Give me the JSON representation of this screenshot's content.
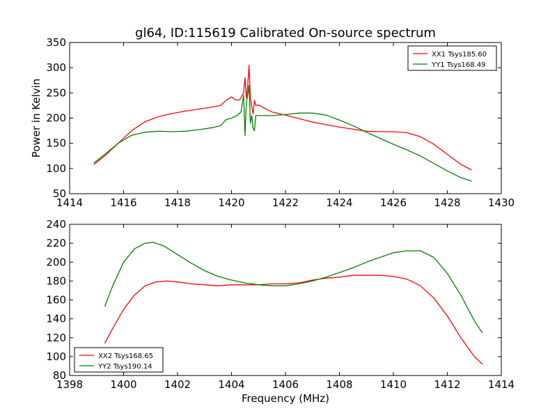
{
  "figure_title": "gl64, ID:115619 Calibrated On-source spectrum",
  "chart_data": [
    {
      "type": "line",
      "title": "gl64, ID:115619 Calibrated On-source spectrum",
      "xlabel": "",
      "ylabel": "Power in Kelvin",
      "xlim": [
        1414,
        1430
      ],
      "ylim": [
        50,
        350
      ],
      "xticks": [
        1414,
        1416,
        1418,
        1420,
        1422,
        1424,
        1426,
        1428,
        1430
      ],
      "yticks": [
        50,
        100,
        150,
        200,
        250,
        300,
        350
      ],
      "grid": false,
      "legend": "top-right",
      "series": [
        {
          "name": "XX1 Tsys185.60",
          "color": "#ff0000",
          "x": [
            1414.9,
            1415.3,
            1415.8,
            1416.3,
            1416.8,
            1417.3,
            1417.8,
            1418.3,
            1418.8,
            1419.3,
            1419.6,
            1419.8,
            1420.0,
            1420.15,
            1420.3,
            1420.45,
            1420.5,
            1420.55,
            1420.6,
            1420.65,
            1420.7,
            1420.75,
            1420.8,
            1420.85,
            1420.9,
            1421.0,
            1421.2,
            1421.5,
            1422.0,
            1422.5,
            1423.0,
            1423.5,
            1424.0,
            1424.5,
            1425.0,
            1425.5,
            1426.0,
            1426.5,
            1427.0,
            1427.5,
            1428.0,
            1428.5,
            1428.9
          ],
          "values": [
            108,
            125,
            150,
            175,
            193,
            203,
            209,
            214,
            218,
            222,
            225,
            235,
            242,
            236,
            236,
            250,
            280,
            240,
            262,
            305,
            240,
            222,
            208,
            235,
            225,
            226,
            220,
            212,
            206,
            199,
            192,
            187,
            182,
            178,
            174,
            173,
            173,
            171,
            163,
            148,
            128,
            108,
            97
          ]
        },
        {
          "name": "YY1 Tsys168.49",
          "color": "#008000",
          "x": [
            1414.9,
            1415.3,
            1415.8,
            1416.3,
            1416.8,
            1417.3,
            1417.8,
            1418.3,
            1418.8,
            1419.3,
            1419.6,
            1419.8,
            1420.0,
            1420.2,
            1420.35,
            1420.45,
            1420.5,
            1420.55,
            1420.6,
            1420.65,
            1420.7,
            1420.75,
            1420.8,
            1420.85,
            1420.9,
            1421.0,
            1421.5,
            1422.0,
            1422.5,
            1423.0,
            1423.5,
            1424.0,
            1424.5,
            1425.0,
            1425.5,
            1426.0,
            1426.5,
            1427.0,
            1427.5,
            1428.0,
            1428.5,
            1428.9
          ],
          "values": [
            111,
            128,
            150,
            166,
            172,
            174,
            173,
            174,
            177,
            181,
            185,
            197,
            200,
            205,
            212,
            245,
            165,
            230,
            245,
            265,
            190,
            205,
            180,
            175,
            205,
            205,
            205,
            207,
            210,
            210,
            206,
            196,
            185,
            172,
            160,
            148,
            137,
            125,
            110,
            95,
            82,
            75
          ]
        }
      ]
    },
    {
      "type": "line",
      "title": "",
      "xlabel": "Frequency (MHz)",
      "ylabel": "",
      "xlim": [
        1398,
        1414
      ],
      "ylim": [
        80,
        240
      ],
      "xticks": [
        1398,
        1400,
        1402,
        1404,
        1406,
        1408,
        1410,
        1412,
        1414
      ],
      "yticks": [
        80,
        100,
        120,
        140,
        160,
        180,
        200,
        220,
        240
      ],
      "grid": false,
      "legend": "bottom-left",
      "series": [
        {
          "name": "XX2 Tsys168.65",
          "color": "#ff0000",
          "x": [
            1399.3,
            1399.6,
            1400.0,
            1400.4,
            1400.8,
            1401.2,
            1401.6,
            1402.0,
            1402.5,
            1403.0,
            1403.5,
            1404.0,
            1404.5,
            1405.0,
            1405.5,
            1406.0,
            1406.5,
            1407.0,
            1407.5,
            1408.0,
            1408.5,
            1409.0,
            1409.5,
            1410.0,
            1410.5,
            1411.0,
            1411.5,
            1412.0,
            1412.5,
            1413.0,
            1413.3
          ],
          "values": [
            114,
            130,
            150,
            165,
            175,
            179,
            180,
            179,
            177,
            176,
            175,
            176,
            176,
            176,
            177,
            177,
            178,
            181,
            183,
            184,
            186,
            186,
            186,
            185,
            182,
            175,
            162,
            143,
            120,
            100,
            92
          ]
        },
        {
          "name": "YY2 Tsys190.14",
          "color": "#008000",
          "x": [
            1399.3,
            1399.6,
            1400.0,
            1400.4,
            1400.8,
            1401.1,
            1401.5,
            1402.0,
            1402.5,
            1403.0,
            1403.5,
            1404.0,
            1404.5,
            1405.0,
            1405.5,
            1406.0,
            1406.5,
            1407.0,
            1407.5,
            1408.0,
            1408.5,
            1409.0,
            1409.5,
            1410.0,
            1410.5,
            1411.0,
            1411.5,
            1412.0,
            1412.5,
            1413.0,
            1413.3
          ],
          "values": [
            153,
            175,
            200,
            214,
            220,
            221,
            217,
            208,
            199,
            191,
            185,
            181,
            178,
            176,
            175,
            175,
            177,
            180,
            184,
            189,
            194,
            200,
            205,
            210,
            212,
            212,
            205,
            188,
            165,
            138,
            125
          ]
        }
      ]
    }
  ]
}
